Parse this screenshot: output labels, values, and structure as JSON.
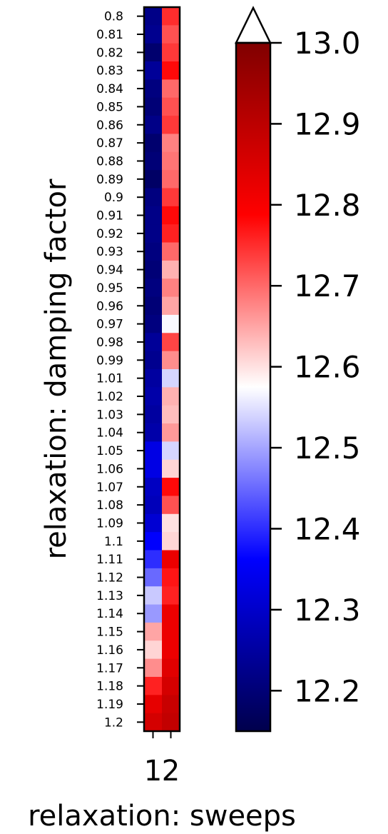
{
  "chart_data": {
    "type": "heatmap",
    "title": "",
    "xlabel": "relaxation: sweeps",
    "ylabel": "relaxation: damping factor",
    "x_categories": [
      "1",
      "2"
    ],
    "y_categories": [
      "0.8",
      "0.81",
      "0.82",
      "0.83",
      "0.84",
      "0.85",
      "0.86",
      "0.87",
      "0.88",
      "0.89",
      "0.9",
      "0.91",
      "0.92",
      "0.93",
      "0.94",
      "0.95",
      "0.96",
      "0.97",
      "0.98",
      "0.99",
      "1.01",
      "1.02",
      "1.03",
      "1.04",
      "1.05",
      "1.06",
      "1.07",
      "1.08",
      "1.09",
      "1.1",
      "1.11",
      "1.12",
      "1.13",
      "1.14",
      "1.15",
      "1.16",
      "1.17",
      "1.18",
      "1.19",
      "1.2"
    ],
    "values": [
      [
        12.22,
        12.75
      ],
      [
        12.23,
        12.72
      ],
      [
        12.19,
        12.74
      ],
      [
        12.24,
        12.78
      ],
      [
        12.21,
        12.7
      ],
      [
        12.2,
        12.72
      ],
      [
        12.22,
        12.74
      ],
      [
        12.19,
        12.68
      ],
      [
        12.2,
        12.69
      ],
      [
        12.18,
        12.7
      ],
      [
        12.21,
        12.74
      ],
      [
        12.22,
        12.78
      ],
      [
        12.22,
        12.76
      ],
      [
        12.21,
        12.7
      ],
      [
        12.2,
        12.64
      ],
      [
        12.21,
        12.68
      ],
      [
        12.2,
        12.65
      ],
      [
        12.21,
        12.57
      ],
      [
        12.24,
        12.73
      ],
      [
        12.23,
        12.67
      ],
      [
        12.25,
        12.54
      ],
      [
        12.26,
        12.64
      ],
      [
        12.25,
        12.63
      ],
      [
        12.26,
        12.66
      ],
      [
        12.33,
        12.54
      ],
      [
        12.33,
        12.61
      ],
      [
        12.29,
        12.78
      ],
      [
        12.28,
        12.72
      ],
      [
        12.31,
        12.6
      ],
      [
        12.36,
        12.61
      ],
      [
        12.4,
        12.82
      ],
      [
        12.45,
        12.77
      ],
      [
        12.53,
        12.76
      ],
      [
        12.49,
        12.82
      ],
      [
        12.65,
        12.82
      ],
      [
        12.61,
        12.82
      ],
      [
        12.67,
        12.84
      ],
      [
        12.76,
        12.86
      ],
      [
        12.83,
        12.88
      ],
      [
        12.86,
        12.89
      ]
    ],
    "colorbar": {
      "min": 12.15,
      "max": 13.0,
      "ticks": [
        "12.2",
        "12.3",
        "12.4",
        "12.5",
        "12.6",
        "12.7",
        "12.8",
        "12.9",
        "13.0"
      ],
      "extend": "max",
      "colormap": "seismic",
      "colormap_stops": [
        "#00004c",
        "#0000ff",
        "#ffffff",
        "#ff0000",
        "#800000"
      ]
    }
  }
}
